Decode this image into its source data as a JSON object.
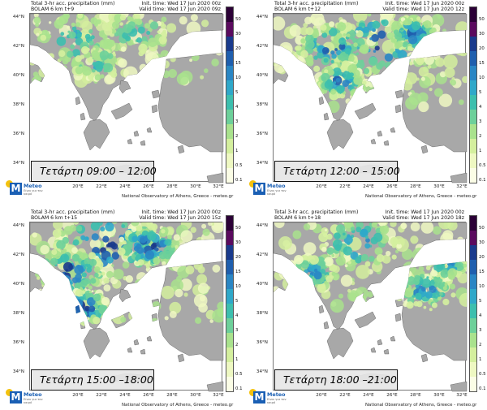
{
  "header": {
    "title_line": "Total 3-hr acc. precipitation (mm)",
    "init_time": "Init. time: Wed 17 Jun 2020 00z"
  },
  "panels": [
    {
      "model_line": "BOLAM 6 km t+9",
      "valid_time": "Valid time: Wed 17 Jun 2020 09z",
      "label": "Τετάρτη 09:00 – 12:00",
      "intensity": 0.25
    },
    {
      "model_line": "BOLAM 6 km t+12",
      "valid_time": "Valid time: Wed 17 Jun 2020 12z",
      "label": "Τετάρτη 12:00 – 15:00",
      "intensity": 0.75
    },
    {
      "model_line": "BOLAM 6 km t+15",
      "valid_time": "Valid time: Wed 17 Jun 2020 15z",
      "label": "Τετάρτη 15:00 –18:00",
      "intensity": 0.9
    },
    {
      "model_line": "BOLAM 6 km t+18",
      "valid_time": "Valid time: Wed 17 Jun 2020 18z",
      "label": "Τετάρτη 18:00 –21:00",
      "intensity": 0.55
    }
  ],
  "axes": {
    "lat_labels": [
      "44°N",
      "42°N",
      "40°N",
      "38°N",
      "36°N",
      "34°N"
    ],
    "lon_labels": [
      "20°E",
      "22°E",
      "24°E",
      "26°E",
      "28°E",
      "30°E",
      "32°E"
    ]
  },
  "colorbar": {
    "labels": [
      "50",
      "30",
      "20",
      "15",
      "10",
      "5",
      "4",
      "3",
      "2",
      "1",
      "0.5",
      "0.1"
    ],
    "colors": [
      "#2b0036",
      "#5a0a5e",
      "#193a8c",
      "#1f5fae",
      "#2a86c4",
      "#2fa8c9",
      "#3cbfae",
      "#6dd09a",
      "#a9e28d",
      "#d4ef9e",
      "#eef8c2",
      "#fbfde6"
    ]
  },
  "footer": "National Observatory of Athens, Greece - meteo.gr",
  "logo": {
    "name": "Meteo",
    "sub": "Είναι για τον καιρό"
  },
  "colors": {
    "land": "#a8a8a8",
    "sea": "#ffffff",
    "border": "#555555"
  }
}
